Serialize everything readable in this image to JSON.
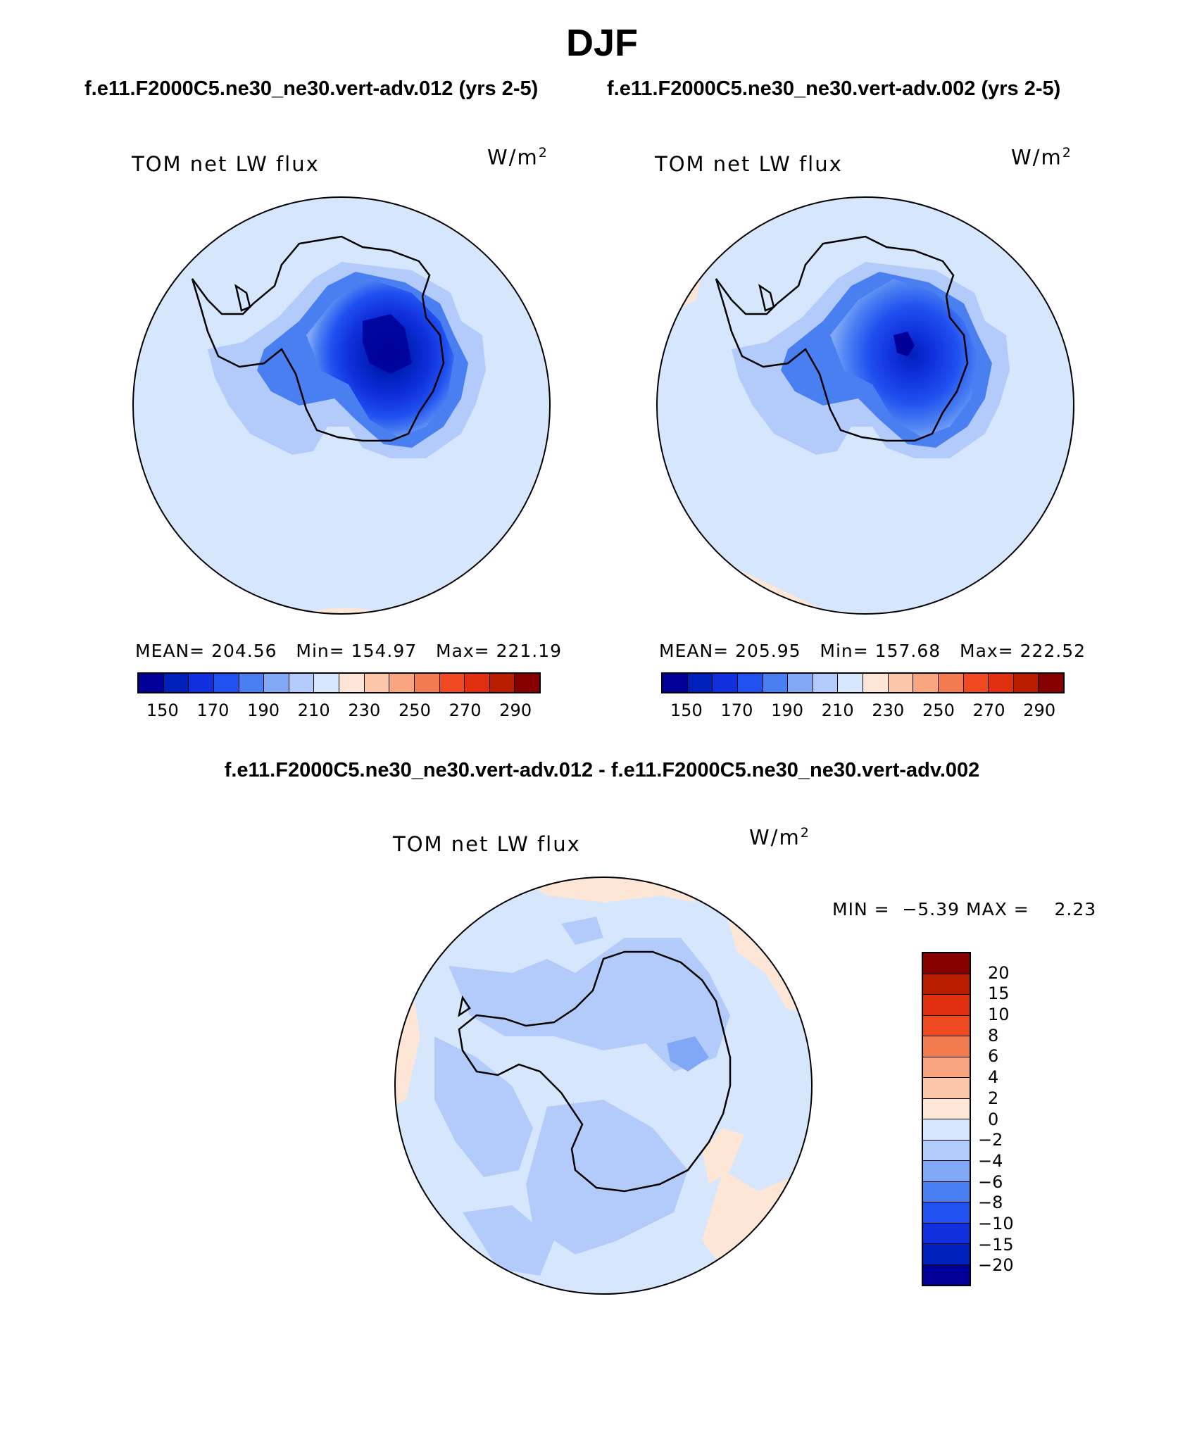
{
  "figure": {
    "title": "DJF",
    "subtitle_left": "f.e11.F2000C5.ne30_ne30.vert-adv.012 (yrs 2-5)",
    "subtitle_right": "f.e11.F2000C5.ne30_ne30.vert-adv.002 (yrs 2-5)",
    "diff_title": "f.e11.F2000C5.ne30_ne30.vert-adv.012 - f.e11.F2000C5.ne30_ne30.vert-adv.002"
  },
  "colors": {
    "abs_levels": [
      "#000099",
      "#0020bb",
      "#1030dd",
      "#2050f0",
      "#4a7ff2",
      "#80a8f6",
      "#b3cbfa",
      "#d6e6fd",
      "#fde6d6",
      "#fbc7a8",
      "#f8a47f",
      "#f47a50",
      "#f24a20",
      "#e03010",
      "#b81d00",
      "#870000"
    ],
    "diff_levels": [
      "#000099",
      "#0020bb",
      "#1030dd",
      "#2050f0",
      "#4a7ff2",
      "#80a8f6",
      "#b3cbfa",
      "#d6e6fd",
      "#fde6d6",
      "#fbc7a8",
      "#f8a47f",
      "#f47a50",
      "#f24a20",
      "#e03010",
      "#b81d00",
      "#870000"
    ],
    "coast": "#000000"
  },
  "chart_data": [
    {
      "type": "contour-map",
      "projection": "south-polar-stereographic",
      "label": "TOM net LW flux",
      "units_base": "W/m",
      "units_exp": "2",
      "stats": {
        "mean_label": "MEAN=",
        "mean": "204.56",
        "min_label": "Min=",
        "min": "154.97",
        "max_label": "Max=",
        "max": "221.19"
      },
      "colorbar_ticks": [
        "150",
        "170",
        "190",
        "210",
        "230",
        "250",
        "270",
        "290"
      ],
      "levels": [
        150,
        160,
        170,
        180,
        190,
        200,
        210,
        220,
        230,
        240,
        250,
        260,
        270,
        280,
        290
      ],
      "field_summary": {
        "ocean_bin": 7,
        "antarctic_plateau_min_bin": 0
      }
    },
    {
      "type": "contour-map",
      "projection": "south-polar-stereographic",
      "label": "TOM net LW flux",
      "units_base": "W/m",
      "units_exp": "2",
      "stats": {
        "mean_label": "MEAN=",
        "mean": "205.95",
        "min_label": "Min=",
        "min": "157.68",
        "max_label": "Max=",
        "max": "222.52"
      },
      "colorbar_ticks": [
        "150",
        "170",
        "190",
        "210",
        "230",
        "250",
        "270",
        "290"
      ],
      "levels": [
        150,
        160,
        170,
        180,
        190,
        200,
        210,
        220,
        230,
        240,
        250,
        260,
        270,
        280,
        290
      ],
      "field_summary": {
        "ocean_bin": 7,
        "antarctic_plateau_min_bin": 0
      }
    },
    {
      "type": "contour-map",
      "projection": "south-polar-stereographic",
      "label": "TOM net LW flux",
      "units_base": "W/m",
      "units_exp": "2",
      "stats": {
        "min_label": "MIN =",
        "min": "−5.39",
        "max_label": "MAX =",
        "max": "2.23"
      },
      "colorbar_ticks": [
        "20",
        "15",
        "10",
        "8",
        "6",
        "4",
        "2",
        "0",
        "−2",
        "−4",
        "−6",
        "−8",
        "−10",
        "−15",
        "−20"
      ],
      "levels": [
        -20,
        -15,
        -10,
        -8,
        -6,
        -4,
        -2,
        0,
        2,
        4,
        6,
        8,
        10,
        15,
        20
      ]
    }
  ]
}
